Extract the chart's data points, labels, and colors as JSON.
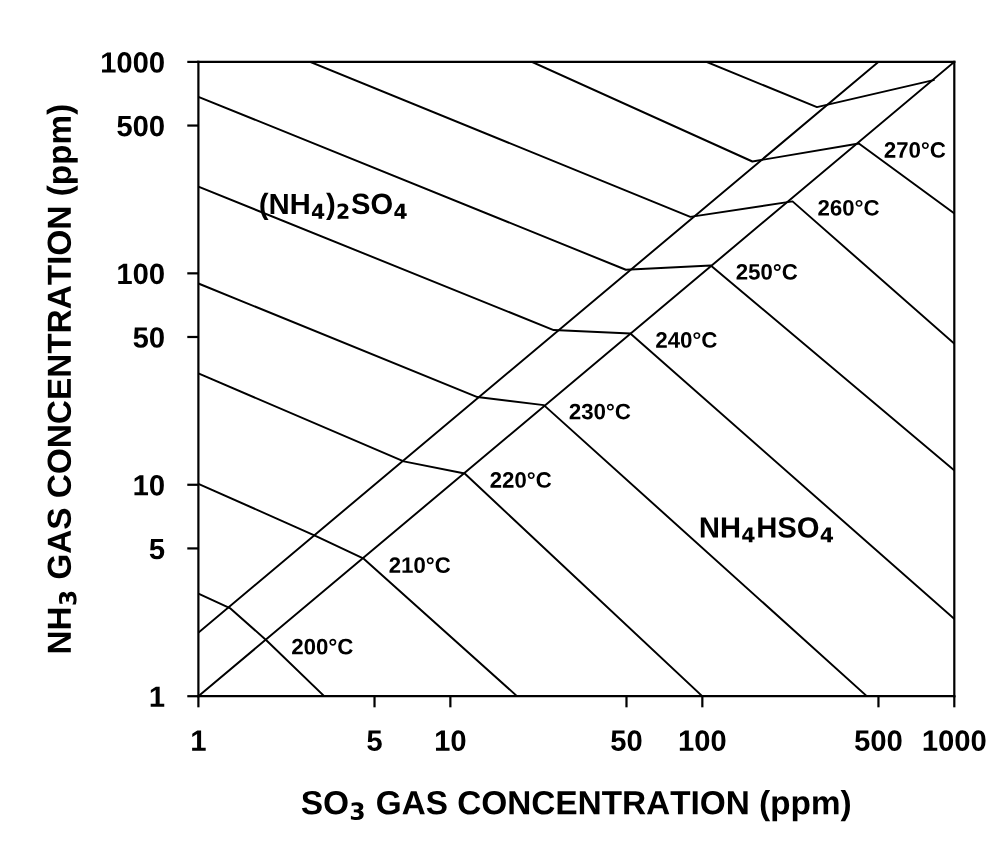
{
  "chart_data": {
    "type": "line",
    "xlabel": "SO$_{3}$ GAS CONCENTRATION (ppm)",
    "ylabel": "NH$_{3}$ GAS CONCENTRATION (ppm)",
    "log": "xy",
    "xlim": [
      1,
      1000
    ],
    "ylim": [
      1,
      1000
    ],
    "xticks": [
      1,
      5,
      10,
      50,
      100,
      500,
      1000
    ],
    "yticks": [
      1,
      5,
      10,
      50,
      100,
      500,
      1000
    ],
    "grid": false,
    "legend": false,
    "marker": "none",
    "line_style": "solid",
    "series": [
      {
        "color": "#000000",
        "x": [
          1,
          1000
        ],
        "values": [
          1,
          1000
        ]
      },
      {
        "color": "#000000",
        "x": [
          1,
          500
        ],
        "values": [
          2,
          1000
        ]
      },
      {
        "name": "200°C",
        "color": "#000000",
        "x": [
          1,
          1.34,
          1.86,
          3.16
        ],
        "values": [
          3.06,
          2.6,
          1.84,
          1
        ]
      },
      {
        "name": "210°C",
        "color": "#000000",
        "x": [
          1,
          2.9,
          4.53,
          18.4
        ],
        "values": [
          10.1,
          5.75,
          4.47,
          1
        ]
      },
      {
        "name": "220°C",
        "color": "#000000",
        "x": [
          1,
          6.53,
          11.4,
          100
        ],
        "values": [
          33.6,
          12.9,
          11.3,
          1
        ]
      },
      {
        "name": "230°C",
        "color": "#000000",
        "x": [
          1,
          12.8,
          23.5,
          450
        ],
        "values": [
          89.5,
          26,
          23.8,
          1
        ]
      },
      {
        "name": "240°C",
        "color": "#000000",
        "x": [
          1,
          25.7,
          51.8,
          1000
        ],
        "values": [
          257,
          53.9,
          51.9,
          2.32
        ]
      },
      {
        "name": "250°C",
        "color": "#000000",
        "x": [
          1,
          49.7,
          108,
          1000
        ],
        "values": [
          684,
          104,
          109,
          11.7
        ]
      },
      {
        "name": "260°C",
        "color": "#000000",
        "x": [
          2.78,
          89.6,
          228,
          1000
        ],
        "values": [
          1000,
          185,
          219,
          46.5
        ]
      },
      {
        "name": "270°C",
        "color": "#000000",
        "x": [
          21.1,
          158,
          418,
          1000
        ],
        "values": [
          1000,
          338,
          411,
          192
        ]
      },
      {
        "color": "#000000",
        "x": [
          104,
          285,
          828
        ],
        "values": [
          1000,
          611,
          820
        ]
      }
    ],
    "annotations": [
      "(NH$_{4}$)$_{2}$SO$_{4}$",
      "NH$_{4}$HSO$_{4}$"
    ]
  }
}
